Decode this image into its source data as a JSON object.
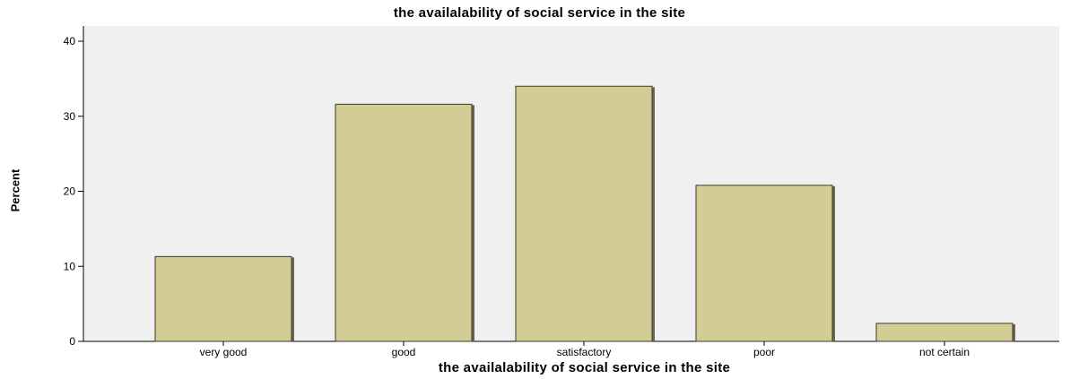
{
  "chart_data": {
    "type": "bar",
    "title": "the availalability of social  service in the site",
    "xlabel": "the availalability of social  service in the site",
    "ylabel": "Percent",
    "categories": [
      "very good",
      "good",
      "satisfactory",
      "poor",
      "not certain"
    ],
    "values": [
      11.3,
      31.6,
      34.0,
      20.8,
      2.4
    ],
    "ylim": [
      0,
      40
    ],
    "yticks": [
      0,
      10,
      20,
      30,
      40
    ],
    "grid": false,
    "legend": "none",
    "colors": {
      "bar_fill": "#d3cc94",
      "bar_edge": "#3d3a28",
      "plot_background": "#f0f0f0"
    }
  }
}
